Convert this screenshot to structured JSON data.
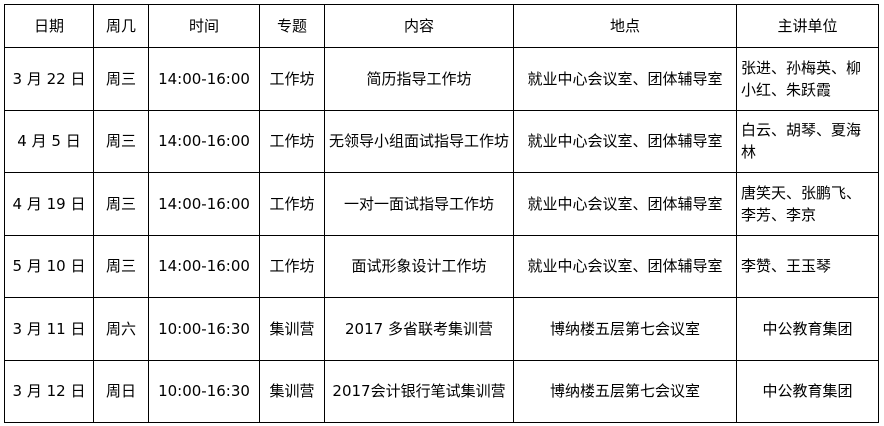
{
  "table": {
    "header": [
      "日期",
      "周几",
      "时间",
      "专题",
      "内容",
      "地点",
      "主讲单位"
    ],
    "rows": [
      [
        "3 月 22 日",
        "周三",
        "14:00-16:00",
        "工作坊",
        "简历指导工作坊",
        "就业中心会议室、团体辅导室",
        "张进、孙梅英、柳小红、朱跃霞"
      ],
      [
        "4 月 5 日",
        "周三",
        "14:00-16:00",
        "工作坊",
        "无领导小组面试指导工作坊",
        "就业中心会议室、团体辅导室",
        "白云、胡琴、夏海林"
      ],
      [
        "4 月 19 日",
        "周三",
        "14:00-16:00",
        "工作坊",
        "一对一面试指导工作坊",
        "就业中心会议室、团体辅导室",
        "唐笑天、张鹏飞、李芳、李京"
      ],
      [
        "5 月 10 日",
        "周三",
        "14:00-16:00",
        "工作坊",
        "面试形象设计工作坊",
        "就业中心会议室、团体辅导室",
        "李赞、王玉琴"
      ],
      [
        "3 月 11 日",
        "周六",
        "10:00-16:30",
        "集训营",
        "2017 多省联考集训营",
        "博纳楼五层第七会议室",
        "中公教育集团"
      ],
      [
        "3 月 12 日",
        "周日",
        "10:00-16:30",
        "集训营",
        "2017会计银行笔试集训营",
        "博纳楼五层第七会议室",
        "中公教育集团"
      ]
    ]
  }
}
